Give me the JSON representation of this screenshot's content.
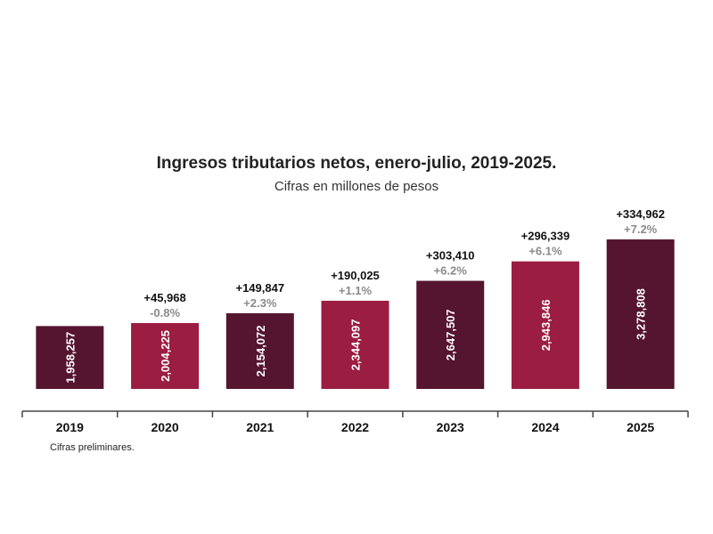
{
  "chart_data": {
    "type": "bar",
    "title": "Ingresos tributarios netos, enero-julio, 2019-2025.",
    "subtitle": "Cifras en millones de pesos",
    "categories": [
      "2019",
      "2020",
      "2021",
      "2022",
      "2023",
      "2024",
      "2025"
    ],
    "values": [
      1958257,
      2004225,
      2154072,
      2344097,
      2647507,
      2943846,
      3278808
    ],
    "value_labels": [
      "1,958,257",
      "2,004,225",
      "2,154,072",
      "2,344,097",
      "2,647,507",
      "2,943,846",
      "3,278,808"
    ],
    "change_labels": [
      "",
      "+45,968",
      "+149,847",
      "+190,025",
      "+303,410",
      "+296,339",
      "+334,962"
    ],
    "percent_labels": [
      "",
      "-0.8%",
      "+2.3%",
      "+1.1%",
      "+6.2%",
      "+6.1%",
      "+7.2%"
    ],
    "bar_colors": [
      "#55152f",
      "#9b1d42",
      "#55152f",
      "#9b1d42",
      "#55152f",
      "#9b1d42",
      "#55152f"
    ],
    "note": "Cifras preliminares.",
    "legend": "none",
    "grid": false
  }
}
